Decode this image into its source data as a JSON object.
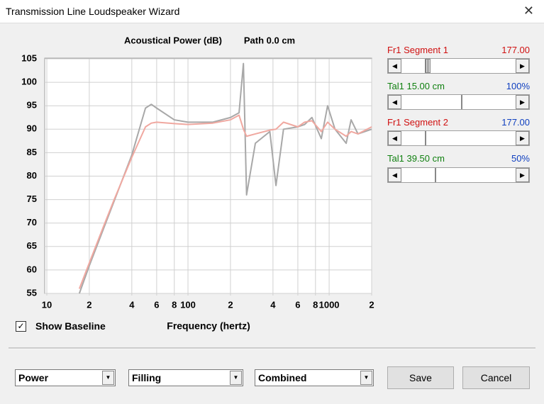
{
  "window": {
    "title": "Transmission Line Loudspeaker Wizard",
    "controls": [
      {
        "label": "Fr1  Segment 1",
        "value": "177.00"
      },
      {
        "label": "Tal1  15.00 cm",
        "value": "100%"
      },
      {
        "label": "Fr1  Segment 2",
        "value": "177.00"
      },
      {
        "label": "Tal1  39.50 cm",
        "value": "50%"
      }
    ],
    "checkbox": "Show Baseline",
    "dropdowns": [
      "Power",
      "Filling",
      "Combined"
    ],
    "buttons": [
      "Save",
      "Cancel"
    ]
  },
  "chart_data": {
    "type": "line",
    "title": "Acoustical Power (dB)",
    "subtitle": "Path 0.0 cm",
    "x_label": "Frequency (hertz)",
    "x_log": true,
    "grid": true,
    "x": [
      17,
      20,
      25,
      30,
      40,
      50,
      55,
      60,
      80,
      100,
      150,
      200,
      230,
      247,
      260,
      300,
      380,
      420,
      475,
      600,
      670,
      755,
      880,
      975,
      1100,
      1320,
      1430,
      1600,
      2000
    ],
    "series": [
      {
        "color": "#a8a8a8",
        "values": [
          55,
          60.9,
          68.5,
          74.7,
          84.5,
          94.5,
          95.3,
          94.5,
          92,
          91.5,
          91.5,
          92.5,
          93.5,
          104,
          76,
          87,
          89.5,
          78,
          90,
          90.5,
          91,
          92.5,
          88,
          95,
          90,
          87,
          92,
          89,
          90
        ]
      },
      {
        "color": "#f0a8a0",
        "values": [
          56,
          61.5,
          69,
          75,
          84,
          90.5,
          91.3,
          91.5,
          91.2,
          91,
          91.3,
          92,
          93,
          90,
          88.5,
          89,
          89.8,
          90,
          91.5,
          90.5,
          91.5,
          91.8,
          89.5,
          91.5,
          90,
          88.5,
          89.5,
          89,
          90.5
        ]
      }
    ],
    "xlim": [
      10,
      2000
    ],
    "xticks": [
      10,
      {
        "value": 20,
        "label": "2"
      },
      {
        "value": 40,
        "label": "4"
      },
      {
        "value": 60,
        "label": "6"
      },
      {
        "value": 80,
        "label": "8"
      },
      100,
      {
        "value": 200,
        "label": "2"
      },
      {
        "value": 400,
        "label": "4"
      },
      {
        "value": 600,
        "label": "6"
      },
      {
        "value": 800,
        "label": "8"
      },
      1000,
      {
        "value": 2000,
        "label": "2"
      }
    ],
    "ylim": [
      55,
      105
    ],
    "yticks": [
      55,
      60,
      65,
      70,
      75,
      80,
      85,
      90,
      95,
      100,
      105
    ]
  }
}
